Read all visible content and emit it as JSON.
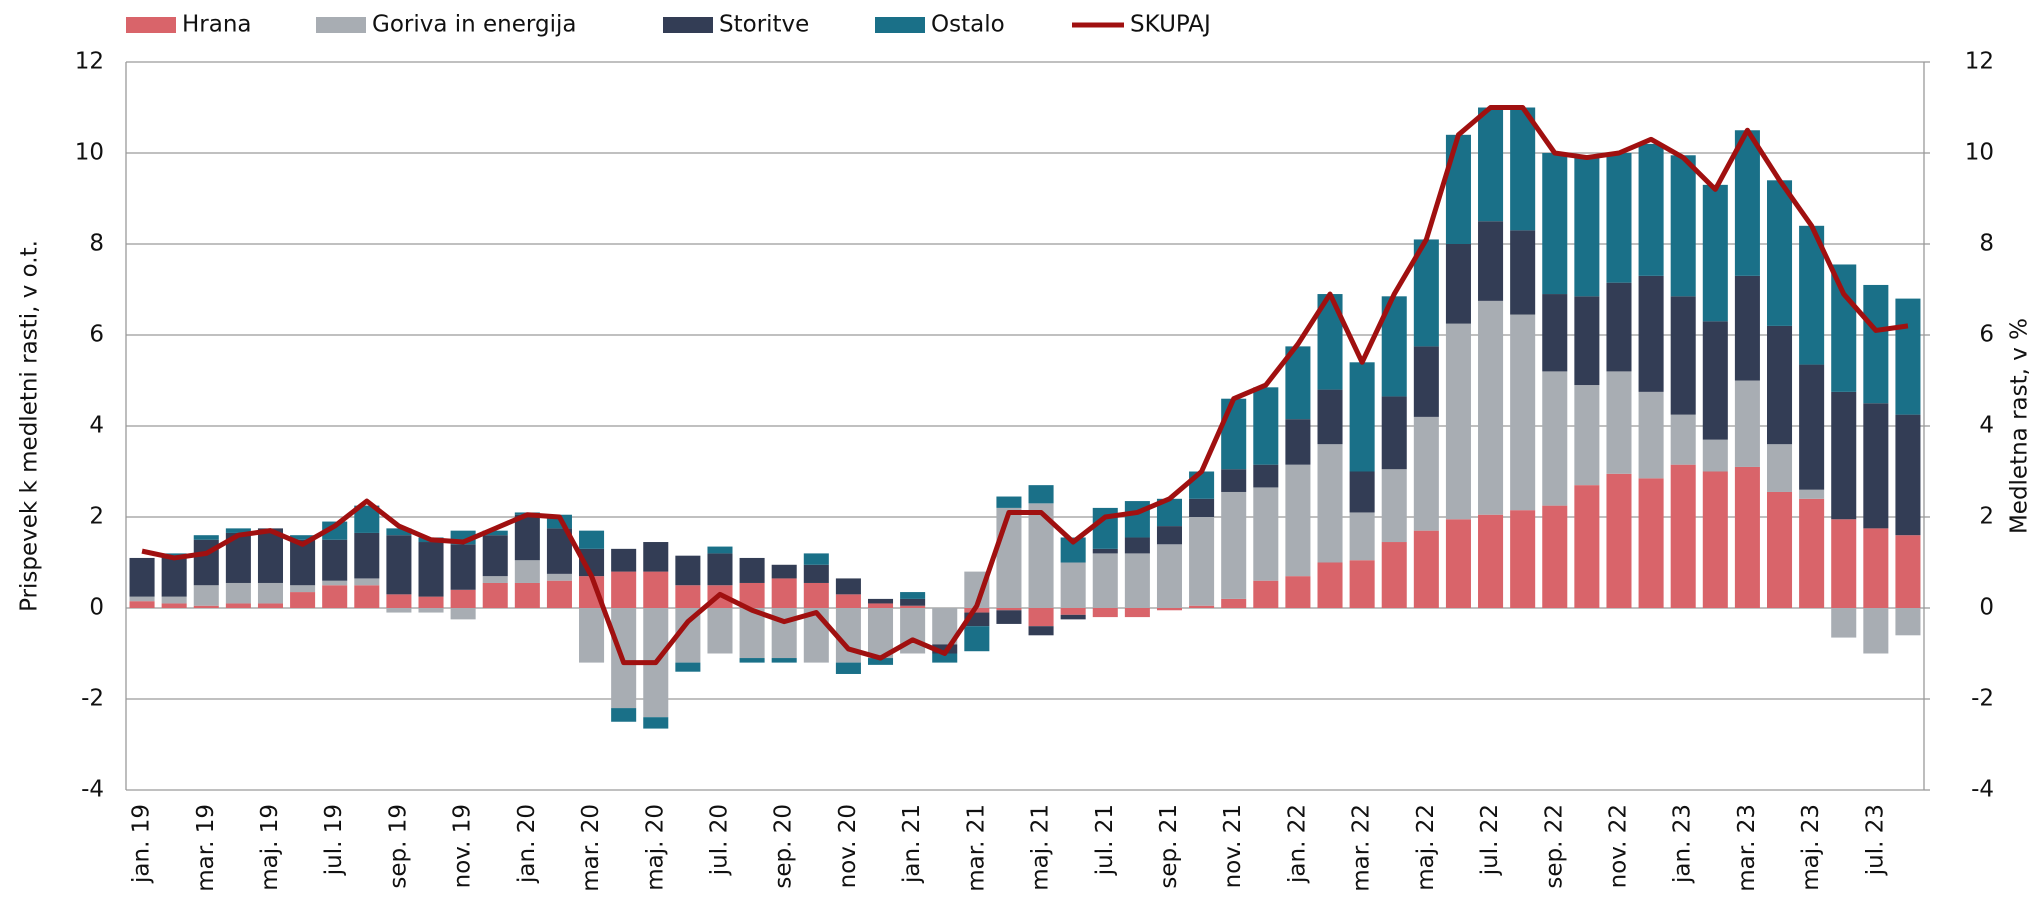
{
  "chart_data": {
    "type": "bar",
    "stacked": true,
    "y_label": "Prispevek k medletni rasti, v o.t.",
    "y2_label": "Medletna rast, v %",
    "categories": [
      "jan. 19",
      null,
      "mar. 19",
      null,
      "maj. 19",
      null,
      "jul. 19",
      null,
      "sep. 19",
      null,
      "nov. 19",
      null,
      "jan. 20",
      null,
      "mar. 20",
      null,
      "maj. 20",
      null,
      "jul. 20",
      null,
      "sep. 20",
      null,
      "nov. 20",
      null,
      "jan. 21",
      null,
      "mar. 21",
      null,
      "maj. 21",
      null,
      "jul. 21",
      null,
      "sep. 21",
      null,
      "nov. 21",
      null,
      "jan. 22",
      null,
      "mar. 22",
      null,
      "maj. 22",
      null,
      "jul. 22",
      null,
      "sep. 22",
      null,
      "nov. 22",
      null,
      "jan. 23",
      null,
      "mar. 23",
      null,
      "maj. 23",
      null,
      "jul. 23",
      null
    ],
    "series": [
      {
        "name": "Hrana",
        "color": "#d9646a",
        "values": [
          0.15,
          0.1,
          0.05,
          0.1,
          0.1,
          0.35,
          0.5,
          0.5,
          0.3,
          0.25,
          0.4,
          0.55,
          0.55,
          0.6,
          0.7,
          0.8,
          0.8,
          0.5,
          0.5,
          0.55,
          0.65,
          0.55,
          0.3,
          0.1,
          0.05,
          0.0,
          -0.1,
          -0.05,
          -0.4,
          -0.15,
          -0.2,
          -0.2,
          -0.05,
          0.05,
          0.2,
          0.6,
          0.7,
          1.0,
          1.05,
          1.45,
          1.7,
          1.95,
          2.05,
          2.15,
          2.25,
          2.7,
          2.95,
          2.85,
          3.15,
          3.0,
          3.1,
          2.55,
          2.4,
          1.95,
          1.75,
          1.6
        ]
      },
      {
        "name": "Goriva in energija",
        "color": "#a8adb3",
        "values": [
          0.1,
          0.15,
          0.45,
          0.45,
          0.45,
          0.15,
          0.1,
          0.15,
          -0.1,
          -0.1,
          -0.25,
          0.15,
          0.5,
          0.15,
          -1.2,
          -2.2,
          -2.4,
          -1.2,
          -1.0,
          -1.1,
          -1.1,
          -1.2,
          -1.2,
          -1.1,
          -1.0,
          -0.8,
          0.8,
          2.2,
          2.3,
          1.0,
          1.2,
          1.2,
          1.4,
          1.95,
          2.35,
          2.05,
          2.45,
          2.6,
          1.05,
          1.6,
          2.5,
          4.3,
          4.7,
          4.3,
          2.95,
          2.2,
          2.25,
          1.9,
          1.1,
          0.7,
          1.9,
          1.05,
          0.2,
          -0.65,
          -1.0,
          -0.6
        ]
      },
      {
        "name": "Storitve",
        "color": "#333d55",
        "values": [
          0.85,
          0.9,
          1.0,
          1.1,
          1.2,
          1.0,
          0.9,
          1.0,
          1.3,
          1.2,
          1.0,
          0.9,
          1.0,
          1.0,
          0.6,
          0.5,
          0.65,
          0.65,
          0.7,
          0.55,
          0.3,
          0.4,
          0.35,
          0.1,
          0.15,
          -0.2,
          -0.3,
          -0.3,
          -0.2,
          -0.1,
          0.1,
          0.35,
          0.4,
          0.4,
          0.5,
          0.5,
          1.0,
          1.2,
          0.9,
          1.6,
          1.55,
          1.75,
          1.75,
          1.85,
          1.7,
          1.95,
          1.95,
          2.55,
          2.6,
          2.6,
          2.3,
          2.6,
          2.75,
          2.8,
          2.75,
          2.65
        ]
      },
      {
        "name": "Ostalo",
        "color": "#1a7088",
        "values": [
          0,
          0.05,
          0.1,
          0.1,
          0,
          0.1,
          0.4,
          0.6,
          0.15,
          0.1,
          0.3,
          0.1,
          0.05,
          0.3,
          0.4,
          -0.3,
          -0.25,
          -0.2,
          0.15,
          -0.1,
          -0.1,
          0.25,
          -0.25,
          -0.15,
          0.15,
          -0.2,
          -0.55,
          0.25,
          0.4,
          0.55,
          0.9,
          0.8,
          0.6,
          0.6,
          1.55,
          1.7,
          1.6,
          2.1,
          2.4,
          2.2,
          2.35,
          2.4,
          2.5,
          2.7,
          3.1,
          3.1,
          2.85,
          2.9,
          3.1,
          3.0,
          3.2,
          3.2,
          3.05,
          2.8,
          2.6,
          2.55
        ]
      },
      {
        "name": "SKUPAJ",
        "type": "line",
        "axis": "y2",
        "color": "#a01010",
        "values": [
          1.25,
          1.1,
          1.2,
          1.6,
          1.7,
          1.4,
          1.8,
          2.35,
          1.8,
          1.5,
          1.45,
          1.75,
          2.05,
          2.0,
          0.7,
          -1.2,
          -1.2,
          -0.3,
          0.3,
          -0.05,
          -0.3,
          -0.1,
          -0.9,
          -1.1,
          -0.7,
          -1.0,
          0.05,
          2.1,
          2.1,
          1.45,
          2.0,
          2.1,
          2.4,
          3.0,
          4.6,
          4.9,
          5.8,
          6.9,
          5.4,
          6.9,
          8.1,
          10.4,
          11.0,
          11.0,
          10.0,
          9.9,
          10.0,
          10.3,
          9.9,
          9.2,
          10.5,
          9.4,
          8.4,
          6.9,
          6.1,
          6.2
        ]
      }
    ],
    "ylim": [
      -4,
      12
    ],
    "yticks": [
      -4,
      -2,
      0,
      2,
      4,
      6,
      8,
      10,
      12
    ],
    "y2lim": [
      -4,
      12
    ],
    "y2ticks": [
      -4,
      -2,
      0,
      2,
      4,
      6,
      8,
      10,
      12
    ],
    "grid": true,
    "legend": "top"
  }
}
